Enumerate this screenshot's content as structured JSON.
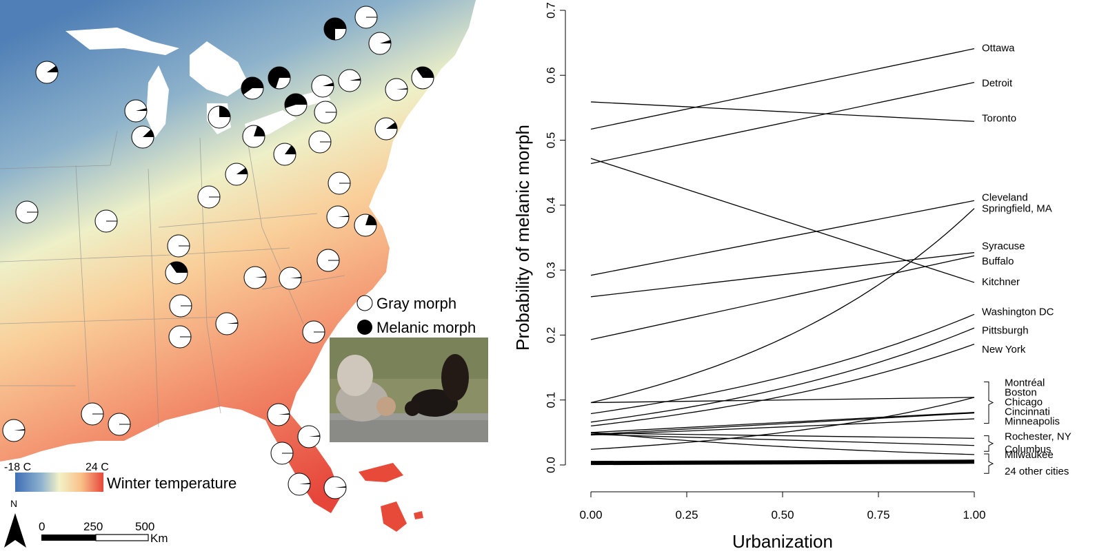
{
  "map": {
    "legend": {
      "gray_label": "Gray morph",
      "melanic_label": "Melanic morph"
    },
    "temperature_scale": {
      "min_label": "-18 C",
      "max_label": "24 C",
      "title": "Winter temperature",
      "colors": [
        "#3f6fb5",
        "#8fb3cf",
        "#f2f2c6",
        "#f8c08a",
        "#e8473a"
      ]
    },
    "scale_bar": {
      "ticks": [
        "0",
        "250",
        "500"
      ],
      "unit": "Km"
    },
    "north_label": "N",
    "photo_alt_colors": {
      "background": "#8a8f66",
      "ledge": "#9a9a96"
    },
    "sample_sites": [
      {
        "melanic": 0.1
      },
      {
        "melanic": 0.75
      },
      {
        "melanic": 0.0
      },
      {
        "melanic": 0.05
      },
      {
        "melanic": 0.35
      },
      {
        "melanic": 0.02
      },
      {
        "melanic": 0.03
      },
      {
        "melanic": 0.05
      },
      {
        "melanic": 0.6
      },
      {
        "melanic": 0.7
      },
      {
        "melanic": 0.55
      },
      {
        "melanic": 0.0
      },
      {
        "melanic": 0.25
      },
      {
        "melanic": 0.2
      },
      {
        "melanic": 0.04
      },
      {
        "melanic": 0.12
      },
      {
        "melanic": 0.15
      },
      {
        "melanic": 0.1
      },
      {
        "melanic": 0.0
      },
      {
        "melanic": 0.1
      },
      {
        "melanic": 0.0
      },
      {
        "melanic": 0.0
      },
      {
        "melanic": 0.0
      },
      {
        "melanic": 0.0
      },
      {
        "melanic": 0.0
      },
      {
        "melanic": 0.02
      },
      {
        "melanic": 0.2
      },
      {
        "melanic": 0.35
      },
      {
        "melanic": 0.03
      },
      {
        "melanic": 0.02
      },
      {
        "melanic": 0.02
      },
      {
        "melanic": 0.0
      },
      {
        "melanic": 0.02
      },
      {
        "melanic": 0.0
      },
      {
        "melanic": 0.0
      },
      {
        "melanic": 0.0
      },
      {
        "melanic": 0.0
      },
      {
        "melanic": 0.02
      },
      {
        "melanic": 0.02
      },
      {
        "melanic": 0.02
      },
      {
        "melanic": 0.0
      },
      {
        "melanic": 0.02
      },
      {
        "melanic": 0.02
      },
      {
        "melanic": 0.0
      }
    ]
  },
  "chart_data": {
    "type": "line",
    "title": "",
    "xlabel": "Urbanization",
    "ylabel": "Probability of melanic morph",
    "xlim": [
      0,
      1
    ],
    "ylim": [
      0,
      0.7
    ],
    "x_ticks": [
      "0.00",
      "0.25",
      "0.50",
      "0.75",
      "1.00"
    ],
    "y_ticks": [
      "0.0",
      "0.1",
      "0.2",
      "0.3",
      "0.4",
      "0.5",
      "0.6",
      "0.7"
    ],
    "series": [
      {
        "name": "Ottawa",
        "start": 0.517,
        "end": 0.641,
        "curve": "linear"
      },
      {
        "name": "Detroit",
        "start": 0.464,
        "end": 0.589,
        "curve": "linear"
      },
      {
        "name": "Toronto",
        "start": 0.559,
        "end": 0.529,
        "curve": "linear"
      },
      {
        "name": "Kitchner",
        "start": 0.472,
        "end": 0.281,
        "curve": "linear"
      },
      {
        "name": "Cleveland",
        "start": 0.292,
        "end": 0.407,
        "curve": "linear"
      },
      {
        "name": "Springfield, MA",
        "start": 0.096,
        "end": 0.395,
        "curve": "exp"
      },
      {
        "name": "Syracuse",
        "start": 0.259,
        "end": 0.327,
        "curve": "linear"
      },
      {
        "name": "Buffalo",
        "start": 0.193,
        "end": 0.322,
        "curve": "linear"
      },
      {
        "name": "Washington DC",
        "start": 0.079,
        "end": 0.232,
        "curve": "exp"
      },
      {
        "name": "Pittsburgh",
        "start": 0.066,
        "end": 0.211,
        "curve": "exp"
      },
      {
        "name": "New York",
        "start": 0.06,
        "end": 0.186,
        "curve": "exp"
      },
      {
        "name": "Montréal",
        "start": 0.096,
        "end": 0.104,
        "curve": "linear"
      },
      {
        "name": "Boston",
        "start": 0.024,
        "end": 0.104,
        "curve": "exp"
      },
      {
        "name": "Chicago",
        "start": 0.05,
        "end": 0.081,
        "curve": "linear"
      },
      {
        "name": "Cincinnati",
        "start": 0.047,
        "end": 0.08,
        "curve": "linear"
      },
      {
        "name": "Minneapolis",
        "start": 0.046,
        "end": 0.071,
        "curve": "linear"
      },
      {
        "name": "Rochester, NY",
        "start": 0.049,
        "end": 0.041,
        "curve": "linear"
      },
      {
        "name": "Columbus",
        "start": 0.047,
        "end": 0.03,
        "curve": "linear"
      },
      {
        "name": "Milwaukee",
        "start": 0.05,
        "end": 0.016,
        "curve": "exp"
      },
      {
        "name": "24 other cities",
        "start": 0.003,
        "end": 0.005,
        "curve": "linear"
      }
    ],
    "labels": [
      {
        "text": "Ottawa",
        "y": 0.641
      },
      {
        "text": "Detroit",
        "y": 0.587
      },
      {
        "text": "Toronto",
        "y": 0.533
      },
      {
        "text": "Cleveland",
        "y": 0.411
      },
      {
        "text": "Springfield, MA",
        "y": 0.394
      },
      {
        "text": "Syracuse",
        "y": 0.336
      },
      {
        "text": "Buffalo",
        "y": 0.313
      },
      {
        "text": "Kitchner",
        "y": 0.281
      },
      {
        "text": "Washington DC",
        "y": 0.235
      },
      {
        "text": "Pittsburgh",
        "y": 0.206
      },
      {
        "text": "New York",
        "y": 0.177
      }
    ],
    "bracket_groups": [
      {
        "labels": [
          "Montréal",
          "Boston",
          "Chicago",
          "Cincinnati",
          "Minneapolis"
        ],
        "y_top": 0.128,
        "y_bottom": 0.064
      },
      {
        "labels": [
          "Rochester, NY",
          "Columbus"
        ],
        "y_top": 0.045,
        "y_bottom": 0.021
      },
      {
        "labels": [
          "Milwaukee",
          "24 other cities"
        ],
        "y_top": 0.017,
        "y_bottom": -0.013
      }
    ],
    "grid": false
  }
}
